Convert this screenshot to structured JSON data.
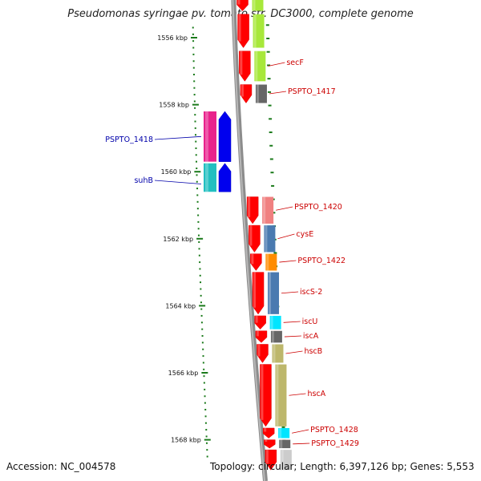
{
  "title": "Pseudomonas syringae pv. tomato str. DC3000, complete genome",
  "accession": "Accession: NC_004578",
  "summary": "Topology: circular; Length: 6,397,126 bp; Genes: 5,553",
  "colors": {
    "forward_label": "#cc0000",
    "reverse_label": "#0000aa",
    "tick": "#1a7a1a",
    "backbone": "#8a8a8a"
  },
  "scale": {
    "ticks": [
      {
        "kbp": 1556,
        "label": "1556 kbp"
      },
      {
        "kbp": 1558,
        "label": "1558 kbp"
      },
      {
        "kbp": 1560,
        "label": "1560 kbp"
      },
      {
        "kbp": 1562,
        "label": "1562 kbp"
      },
      {
        "kbp": 1564,
        "label": "1564 kbp"
      },
      {
        "kbp": 1566,
        "label": "1566 kbp"
      },
      {
        "kbp": 1568,
        "label": "1568 kbp"
      }
    ]
  },
  "genes": [
    {
      "label": "",
      "strand": "+",
      "start": 1554.8,
      "end": 1555.2,
      "cog_color": "#a7e83a"
    },
    {
      "label": "",
      "strand": "+",
      "start": 1555.3,
      "end": 1556.3,
      "cog_color": "#a7e83a"
    },
    {
      "label": "secF",
      "strand": "+",
      "start": 1556.4,
      "end": 1557.3,
      "cog_color": "#a7e83a"
    },
    {
      "label": "PSPTO_1417",
      "strand": "+",
      "start": 1557.4,
      "end": 1557.95,
      "cog_color": "#666666"
    },
    {
      "label": "PSPTO_1418",
      "strand": "-",
      "start": 1558.2,
      "end": 1559.7,
      "cog_color": "#e8228c"
    },
    {
      "label": "suhB",
      "strand": "-",
      "start": 1559.75,
      "end": 1560.6,
      "cog_color": "#22bfc0"
    },
    {
      "label": "PSPTO_1420",
      "strand": "+",
      "start": 1560.75,
      "end": 1561.55,
      "cog_color": "#f08080"
    },
    {
      "label": "cysE",
      "strand": "+",
      "start": 1561.6,
      "end": 1562.4,
      "cog_color": "#4a7ab0"
    },
    {
      "label": "PSPTO_1422",
      "strand": "+",
      "start": 1562.45,
      "end": 1562.95,
      "cog_color": "#ff8c00"
    },
    {
      "label": "iscS-2",
      "strand": "+",
      "start": 1563.0,
      "end": 1564.25,
      "cog_color": "#4a7ab0"
    },
    {
      "label": "iscU",
      "strand": "+",
      "start": 1564.3,
      "end": 1564.7,
      "cog_color": "#00e5ff"
    },
    {
      "label": "iscA",
      "strand": "+",
      "start": 1564.75,
      "end": 1565.1,
      "cog_color": "#666666"
    },
    {
      "label": "hscB",
      "strand": "+",
      "start": 1565.15,
      "end": 1565.7,
      "cog_color": "#bdb76b"
    },
    {
      "label": "hscA",
      "strand": "+",
      "start": 1565.75,
      "end": 1567.6,
      "cog_color": "#bdb76b"
    },
    {
      "label": "PSPTO_1428",
      "strand": "+",
      "start": 1567.65,
      "end": 1567.95,
      "cog_color": "#00e5ff"
    },
    {
      "label": "PSPTO_1429",
      "strand": "+",
      "start": 1568.0,
      "end": 1568.25,
      "cog_color": "#666666"
    },
    {
      "label": "",
      "strand": "+",
      "start": 1568.3,
      "end": 1568.9,
      "cog_color": "#cccccc"
    }
  ]
}
